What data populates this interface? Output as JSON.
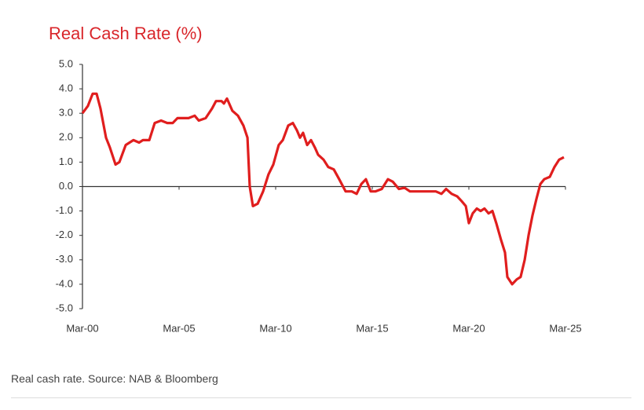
{
  "chart_data": {
    "type": "line",
    "title": "Real Cash Rate (%)",
    "color": "#e01e1e",
    "x": [
      2000.0,
      2000.28,
      2000.53,
      2000.73,
      2000.93,
      2001.22,
      2001.42,
      2001.71,
      2001.91,
      2002.24,
      2002.64,
      2002.93,
      2003.13,
      2003.46,
      2003.74,
      2004.07,
      2004.39,
      2004.67,
      2004.92,
      2005.49,
      2005.81,
      2006.02,
      2006.38,
      2006.71,
      2006.91,
      2007.2,
      2007.32,
      2007.48,
      2007.76,
      2008.05,
      2008.33,
      2008.54,
      2008.66,
      2008.82,
      2009.07,
      2009.35,
      2009.63,
      2009.88,
      2010.16,
      2010.37,
      2010.65,
      2010.89,
      2011.1,
      2011.26,
      2011.42,
      2011.63,
      2011.83,
      2012.03,
      2012.2,
      2012.48,
      2012.72,
      2013.01,
      2013.29,
      2013.62,
      2013.94,
      2014.19,
      2014.43,
      2014.67,
      2014.92,
      2015.16,
      2015.49,
      2015.81,
      2016.06,
      2016.38,
      2016.67,
      2016.95,
      2017.68,
      2018.29,
      2018.58,
      2018.82,
      2019.11,
      2019.39,
      2019.63,
      2019.84,
      2020.0,
      2020.2,
      2020.41,
      2020.61,
      2020.81,
      2021.02,
      2021.22,
      2021.42,
      2021.67,
      2021.87,
      2021.99,
      2022.24,
      2022.48,
      2022.68,
      2022.89,
      2023.09,
      2023.29,
      2023.5,
      2023.7,
      2023.9,
      2024.19,
      2024.43,
      2024.67,
      2024.92
    ],
    "values": [
      3.0,
      3.3,
      3.8,
      3.8,
      3.2,
      2.0,
      1.6,
      0.9,
      1.0,
      1.7,
      1.9,
      1.8,
      1.9,
      1.9,
      2.6,
      2.7,
      2.6,
      2.6,
      2.8,
      2.8,
      2.9,
      2.7,
      2.8,
      3.2,
      3.5,
      3.5,
      3.4,
      3.6,
      3.1,
      2.9,
      2.5,
      2.0,
      0.0,
      -0.8,
      -0.7,
      -0.2,
      0.5,
      0.9,
      1.7,
      1.9,
      2.5,
      2.6,
      2.3,
      2.0,
      2.2,
      1.7,
      1.9,
      1.6,
      1.3,
      1.1,
      0.8,
      0.7,
      0.3,
      -0.2,
      -0.2,
      -0.3,
      0.1,
      0.3,
      -0.2,
      -0.2,
      -0.1,
      0.3,
      0.2,
      -0.1,
      -0.05,
      -0.2,
      -0.2,
      -0.2,
      -0.3,
      -0.1,
      -0.3,
      -0.4,
      -0.6,
      -0.8,
      -1.5,
      -1.1,
      -0.9,
      -1.0,
      -0.9,
      -1.1,
      -1.0,
      -1.5,
      -2.2,
      -2.7,
      -3.7,
      -4.0,
      -3.8,
      -3.7,
      -3.0,
      -2.0,
      -1.2,
      -0.5,
      0.1,
      0.3,
      0.4,
      0.8,
      1.1,
      1.2
    ],
    "xlim": [
      2000,
      2025
    ],
    "xticks": [
      {
        "value": 2000,
        "label": "Mar-00"
      },
      {
        "value": 2005,
        "label": "Mar-05"
      },
      {
        "value": 2010,
        "label": "Mar-10"
      },
      {
        "value": 2015,
        "label": "Mar-15"
      },
      {
        "value": 2020,
        "label": "Mar-20"
      },
      {
        "value": 2025,
        "label": "Mar-25"
      }
    ],
    "ylim": [
      -5,
      5
    ],
    "yticks": [
      {
        "value": 5,
        "label": "5.0"
      },
      {
        "value": 4,
        "label": "4.0"
      },
      {
        "value": 3,
        "label": "3.0"
      },
      {
        "value": 2,
        "label": "2.0"
      },
      {
        "value": 1,
        "label": "1.0"
      },
      {
        "value": 0,
        "label": "0.0"
      },
      {
        "value": -1,
        "label": "-1.0"
      },
      {
        "value": -2,
        "label": "-2.0"
      },
      {
        "value": -3,
        "label": "-3.0"
      },
      {
        "value": -4,
        "label": "-4.0"
      },
      {
        "value": -5,
        "label": "-5.0"
      }
    ],
    "grid": false
  },
  "caption": "Real cash rate. Source: NAB & Bloomberg"
}
